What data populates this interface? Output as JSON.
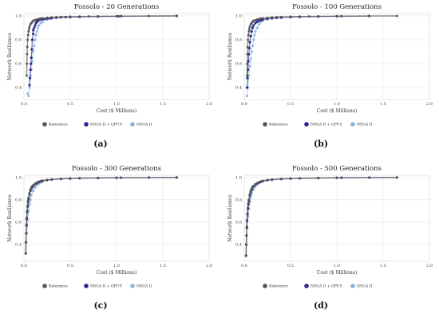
{
  "figure": {
    "legend": [
      {
        "name": "Reference",
        "color": "#555555"
      },
      {
        "name": "NSGA II + OPUS",
        "color": "#27258e"
      },
      {
        "name": "NSGA II",
        "color": "#8db4d6"
      }
    ]
  },
  "chart_data": [
    {
      "type": "scatter",
      "title": "Fossolo - 20 Generations",
      "caption": "(a)",
      "xlabel": "Cost ($ Millions)",
      "ylabel": "Network Resilience",
      "xlim": [
        0,
        2.0
      ],
      "ylim": [
        0.3,
        1.02
      ],
      "xticks": [
        "0.0",
        "0.5",
        "1.0",
        "1.5",
        "2.0"
      ],
      "yticks": [
        "0.4",
        "0.6",
        "0.8",
        "1.0"
      ],
      "grid": true,
      "legend_position": "bottom",
      "series": [
        {
          "name": "Reference",
          "color": "#555555",
          "x": [
            0.03,
            0.032,
            0.034,
            0.036,
            0.04,
            0.045,
            0.05,
            0.055,
            0.06,
            0.07,
            0.08,
            0.09,
            0.1,
            0.12,
            0.14,
            0.16,
            0.18,
            0.2,
            0.25,
            0.3,
            0.35,
            0.4,
            0.5,
            0.6,
            0.7,
            0.8,
            1.0,
            1.05,
            1.35,
            1.65
          ],
          "y": [
            0.5,
            0.6,
            0.68,
            0.74,
            0.8,
            0.84,
            0.87,
            0.89,
            0.91,
            0.93,
            0.94,
            0.95,
            0.96,
            0.965,
            0.97,
            0.975,
            0.978,
            0.98,
            0.985,
            0.988,
            0.99,
            0.992,
            0.994,
            0.995,
            0.996,
            0.997,
            0.998,
            0.998,
            0.999,
            1.0
          ]
        },
        {
          "name": "NSGA II + OPUS",
          "color": "#27258e",
          "x": [
            0.06,
            0.065,
            0.07,
            0.075,
            0.08,
            0.085,
            0.09,
            0.1,
            0.1,
            0.11,
            0.12,
            0.13,
            0.14,
            0.15,
            0.16,
            0.18,
            0.2,
            0.22,
            0.25,
            0.28,
            0.3,
            0.35,
            0.4,
            0.45,
            0.5,
            0.6,
            0.8,
            1.02,
            1.05,
            1.65
          ],
          "y": [
            0.42,
            0.48,
            0.55,
            0.6,
            0.65,
            0.72,
            0.8,
            0.85,
            0.88,
            0.9,
            0.92,
            0.94,
            0.95,
            0.96,
            0.965,
            0.97,
            0.972,
            0.975,
            0.978,
            0.98,
            0.982,
            0.985,
            0.988,
            0.99,
            0.99,
            0.992,
            0.995,
            0.997,
            0.998,
            1.0
          ]
        },
        {
          "name": "NSGA II",
          "color": "#8db4d6",
          "x": [
            0.04,
            0.05,
            0.06,
            0.07,
            0.08,
            0.09,
            0.1,
            0.11,
            0.12,
            0.13,
            0.14,
            0.15,
            0.16,
            0.18,
            0.2,
            0.25,
            0.3,
            0.4
          ],
          "y": [
            0.35,
            0.33,
            0.4,
            0.5,
            0.55,
            0.62,
            0.7,
            0.75,
            0.8,
            0.84,
            0.87,
            0.9,
            0.92,
            0.94,
            0.95,
            0.97,
            0.98,
            0.99
          ]
        }
      ]
    },
    {
      "type": "scatter",
      "title": "Fossolo - 100 Generations",
      "caption": "(b)",
      "xlabel": "Cost ($ Millions)",
      "ylabel": "Network Resilience",
      "xlim": [
        0,
        2.0
      ],
      "ylim": [
        0.3,
        1.02
      ],
      "xticks": [
        "0.0",
        "0.5",
        "1.0",
        "1.5",
        "2.0"
      ],
      "yticks": [
        "0.4",
        "0.6",
        "0.8",
        "1.0"
      ],
      "grid": true,
      "legend_position": "bottom",
      "series": [
        {
          "name": "Reference",
          "color": "#555555",
          "x": [
            0.03,
            0.032,
            0.034,
            0.036,
            0.04,
            0.045,
            0.05,
            0.055,
            0.06,
            0.07,
            0.08,
            0.09,
            0.1,
            0.12,
            0.14,
            0.16,
            0.18,
            0.2,
            0.25,
            0.3,
            0.35,
            0.4,
            0.5,
            0.6,
            0.7,
            0.8,
            1.0,
            1.05,
            1.35,
            1.65
          ],
          "y": [
            0.5,
            0.6,
            0.68,
            0.74,
            0.8,
            0.84,
            0.87,
            0.89,
            0.91,
            0.93,
            0.94,
            0.95,
            0.96,
            0.965,
            0.97,
            0.975,
            0.978,
            0.98,
            0.985,
            0.988,
            0.99,
            0.992,
            0.994,
            0.995,
            0.996,
            0.997,
            0.998,
            0.998,
            0.999,
            1.0
          ]
        },
        {
          "name": "NSGA II + OPUS",
          "color": "#27258e",
          "x": [
            0.03,
            0.035,
            0.04,
            0.045,
            0.05,
            0.055,
            0.06,
            0.07,
            0.08,
            0.09,
            0.1,
            0.12,
            0.14,
            0.16,
            0.18,
            0.2,
            0.25,
            0.3,
            0.35,
            0.4,
            0.5,
            0.6,
            0.8,
            1.0,
            1.05,
            1.35
          ],
          "y": [
            0.4,
            0.48,
            0.55,
            0.62,
            0.68,
            0.73,
            0.78,
            0.83,
            0.87,
            0.9,
            0.92,
            0.94,
            0.95,
            0.96,
            0.965,
            0.97,
            0.975,
            0.98,
            0.983,
            0.986,
            0.99,
            0.992,
            0.995,
            0.997,
            0.998,
            0.999
          ]
        },
        {
          "name": "NSGA II",
          "color": "#8db4d6",
          "x": [
            0.03,
            0.04,
            0.05,
            0.06,
            0.07,
            0.08,
            0.09,
            0.1,
            0.11,
            0.12,
            0.14,
            0.16,
            0.18,
            0.2,
            0.25,
            0.3
          ],
          "y": [
            0.33,
            0.4,
            0.5,
            0.58,
            0.64,
            0.7,
            0.75,
            0.8,
            0.84,
            0.87,
            0.9,
            0.93,
            0.95,
            0.96,
            0.975,
            0.985
          ]
        }
      ]
    },
    {
      "type": "scatter",
      "title": "Fossolo - 300 Generations",
      "caption": "(c)",
      "xlabel": "Cost ($ Millions)",
      "ylabel": "Network Resilience",
      "xlim": [
        0,
        2.0
      ],
      "ylim": [
        0.25,
        1.02
      ],
      "xticks": [
        "0.0",
        "0.5",
        "1.0",
        "1.5",
        "2.0"
      ],
      "yticks": [
        "0.4",
        "0.6",
        "0.8",
        "1.0"
      ],
      "grid": true,
      "legend_position": "bottom",
      "series": [
        {
          "name": "Reference",
          "color": "#555555",
          "x": [
            0.02,
            0.022,
            0.025,
            0.028,
            0.03,
            0.035,
            0.04,
            0.045,
            0.05,
            0.06,
            0.07,
            0.08,
            0.09,
            0.1,
            0.12,
            0.14,
            0.16,
            0.18,
            0.2,
            0.25,
            0.3,
            0.4,
            0.5,
            0.6,
            0.8,
            1.0,
            1.05,
            1.35,
            1.65
          ],
          "y": [
            0.32,
            0.42,
            0.5,
            0.58,
            0.64,
            0.7,
            0.75,
            0.79,
            0.82,
            0.86,
            0.89,
            0.91,
            0.92,
            0.93,
            0.945,
            0.955,
            0.962,
            0.968,
            0.972,
            0.978,
            0.983,
            0.988,
            0.992,
            0.994,
            0.996,
            0.998,
            0.998,
            0.999,
            1.0
          ]
        },
        {
          "name": "NSGA II + OPUS",
          "color": "#27258e",
          "x": [
            0.02,
            0.022,
            0.025,
            0.028,
            0.03,
            0.035,
            0.04,
            0.045,
            0.05,
            0.06,
            0.07,
            0.08,
            0.09,
            0.1,
            0.12,
            0.14,
            0.16,
            0.18,
            0.2,
            0.25,
            0.3,
            0.4,
            0.5,
            0.6,
            0.8,
            1.0,
            1.05,
            1.35,
            1.65
          ],
          "y": [
            0.32,
            0.42,
            0.5,
            0.57,
            0.63,
            0.69,
            0.74,
            0.78,
            0.81,
            0.85,
            0.88,
            0.9,
            0.915,
            0.925,
            0.94,
            0.95,
            0.958,
            0.965,
            0.97,
            0.977,
            0.982,
            0.987,
            0.99,
            0.993,
            0.995,
            0.997,
            0.998,
            0.999,
            1.0
          ]
        },
        {
          "name": "NSGA II",
          "color": "#8db4d6",
          "x": [
            0.03,
            0.04,
            0.05,
            0.06,
            0.07,
            0.08,
            0.1,
            0.12,
            0.14,
            0.16,
            0.18,
            0.2,
            0.25
          ],
          "y": [
            0.5,
            0.62,
            0.7,
            0.76,
            0.8,
            0.84,
            0.88,
            0.91,
            0.93,
            0.945,
            0.955,
            0.963,
            0.975
          ]
        }
      ]
    },
    {
      "type": "scatter",
      "title": "Fossolo - 500 Generations",
      "caption": "(d)",
      "xlabel": "Cost ($ Millions)",
      "ylabel": "Network Resilience",
      "xlim": [
        0,
        2.0
      ],
      "ylim": [
        0.25,
        1.02
      ],
      "xticks": [
        "0.0",
        "0.5",
        "1.0",
        "1.5",
        "2.0"
      ],
      "yticks": [
        "0.4",
        "0.6",
        "0.8",
        "1.0"
      ],
      "grid": true,
      "legend_position": "bottom",
      "series": [
        {
          "name": "Reference",
          "color": "#555555",
          "x": [
            0.02,
            0.022,
            0.025,
            0.028,
            0.03,
            0.035,
            0.04,
            0.045,
            0.05,
            0.06,
            0.07,
            0.08,
            0.09,
            0.1,
            0.12,
            0.14,
            0.16,
            0.18,
            0.2,
            0.25,
            0.3,
            0.4,
            0.5,
            0.6,
            0.8,
            1.0,
            1.05,
            1.35,
            1.65
          ],
          "y": [
            0.3,
            0.4,
            0.48,
            0.56,
            0.62,
            0.68,
            0.73,
            0.77,
            0.8,
            0.85,
            0.88,
            0.9,
            0.915,
            0.925,
            0.94,
            0.95,
            0.958,
            0.965,
            0.97,
            0.977,
            0.982,
            0.987,
            0.99,
            0.993,
            0.995,
            0.997,
            0.998,
            0.999,
            1.0
          ]
        },
        {
          "name": "NSGA II + OPUS",
          "color": "#27258e",
          "x": [
            0.02,
            0.022,
            0.025,
            0.028,
            0.03,
            0.035,
            0.04,
            0.045,
            0.05,
            0.06,
            0.07,
            0.08,
            0.09,
            0.1,
            0.12,
            0.14,
            0.16,
            0.18,
            0.2,
            0.25,
            0.3,
            0.4,
            0.5,
            0.6,
            0.8,
            1.0,
            1.05,
            1.35,
            1.65
          ],
          "y": [
            0.3,
            0.4,
            0.48,
            0.55,
            0.61,
            0.67,
            0.72,
            0.76,
            0.79,
            0.84,
            0.87,
            0.89,
            0.91,
            0.92,
            0.935,
            0.947,
            0.955,
            0.962,
            0.968,
            0.975,
            0.98,
            0.986,
            0.99,
            0.992,
            0.995,
            0.997,
            0.998,
            0.999,
            1.0
          ]
        },
        {
          "name": "NSGA II",
          "color": "#8db4d6",
          "x": [
            0.03,
            0.04,
            0.05,
            0.06,
            0.07,
            0.08,
            0.1,
            0.12,
            0.14,
            0.16,
            0.18,
            0.2,
            0.25
          ],
          "y": [
            0.55,
            0.65,
            0.72,
            0.78,
            0.82,
            0.85,
            0.89,
            0.92,
            0.94,
            0.95,
            0.96,
            0.966,
            0.977
          ]
        }
      ]
    }
  ]
}
